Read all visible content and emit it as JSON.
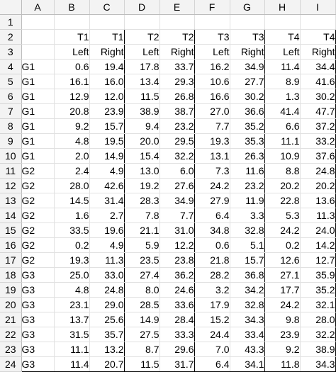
{
  "columns": [
    "A",
    "B",
    "C",
    "D",
    "E",
    "F",
    "G",
    "H",
    "I"
  ],
  "header_row_2": [
    "",
    "T1",
    "T1",
    "T2",
    "T2",
    "T3",
    "T3",
    "T4",
    "T4"
  ],
  "header_row_3": [
    "",
    "Left",
    "Right",
    "Left",
    "Right",
    "Left",
    "Right",
    "Left",
    "Right"
  ],
  "row_numbers": [
    "1",
    "2",
    "3",
    "4",
    "5",
    "6",
    "7",
    "8",
    "9",
    "10",
    "11",
    "12",
    "13",
    "14",
    "15",
    "16",
    "17",
    "18",
    "19",
    "20",
    "21",
    "22",
    "23",
    "24"
  ],
  "rows": [
    [
      "G1",
      "0.6",
      "19.4",
      "17.8",
      "33.7",
      "16.2",
      "34.9",
      "11.4",
      "34.4"
    ],
    [
      "G1",
      "16.1",
      "16.0",
      "13.4",
      "29.3",
      "10.6",
      "27.7",
      "8.9",
      "41.6"
    ],
    [
      "G1",
      "12.9",
      "12.0",
      "11.5",
      "26.8",
      "16.6",
      "30.2",
      "1.3",
      "30.2"
    ],
    [
      "G1",
      "20.8",
      "23.9",
      "38.9",
      "38.7",
      "27.0",
      "36.6",
      "41.4",
      "47.7"
    ],
    [
      "G1",
      "9.2",
      "15.7",
      "9.4",
      "23.2",
      "7.7",
      "35.2",
      "6.6",
      "37.2"
    ],
    [
      "G1",
      "4.8",
      "19.5",
      "20.0",
      "29.5",
      "19.3",
      "35.3",
      "11.1",
      "33.2"
    ],
    [
      "G1",
      "2.0",
      "14.9",
      "15.4",
      "32.2",
      "13.1",
      "26.3",
      "10.9",
      "37.6"
    ],
    [
      "G2",
      "2.4",
      "4.9",
      "13.0",
      "6.0",
      "7.3",
      "11.6",
      "8.8",
      "24.8"
    ],
    [
      "G2",
      "28.0",
      "42.6",
      "19.2",
      "27.6",
      "24.2",
      "23.2",
      "20.2",
      "20.2"
    ],
    [
      "G2",
      "14.5",
      "31.4",
      "28.3",
      "34.9",
      "27.9",
      "11.9",
      "22.8",
      "13.6"
    ],
    [
      "G2",
      "1.6",
      "2.7",
      "7.8",
      "7.7",
      "6.4",
      "3.3",
      "5.3",
      "11.3"
    ],
    [
      "G2",
      "33.5",
      "19.6",
      "21.1",
      "31.0",
      "34.8",
      "32.8",
      "24.2",
      "24.0"
    ],
    [
      "G2",
      "0.2",
      "4.9",
      "5.9",
      "12.2",
      "0.6",
      "5.1",
      "0.2",
      "14.2"
    ],
    [
      "G2",
      "19.3",
      "11.3",
      "23.5",
      "23.8",
      "21.8",
      "15.7",
      "12.6",
      "12.7"
    ],
    [
      "G3",
      "25.0",
      "33.0",
      "27.4",
      "36.2",
      "28.2",
      "36.8",
      "27.1",
      "35.9"
    ],
    [
      "G3",
      "4.8",
      "24.8",
      "8.0",
      "24.6",
      "3.2",
      "34.2",
      "17.7",
      "35.2"
    ],
    [
      "G3",
      "23.1",
      "29.0",
      "28.5",
      "33.6",
      "17.9",
      "32.8",
      "24.2",
      "32.1"
    ],
    [
      "G3",
      "13.7",
      "25.6",
      "14.9",
      "28.4",
      "15.2",
      "34.3",
      "9.8",
      "28.0"
    ],
    [
      "G3",
      "31.5",
      "35.7",
      "27.5",
      "33.3",
      "24.4",
      "33.4",
      "23.9",
      "32.2"
    ],
    [
      "G3",
      "11.1",
      "13.2",
      "8.7",
      "29.6",
      "7.0",
      "43.3",
      "9.2",
      "38.9"
    ],
    [
      "G3",
      "11.4",
      "20.7",
      "11.5",
      "31.7",
      "6.4",
      "34.1",
      "11.8",
      "34.3"
    ]
  ]
}
